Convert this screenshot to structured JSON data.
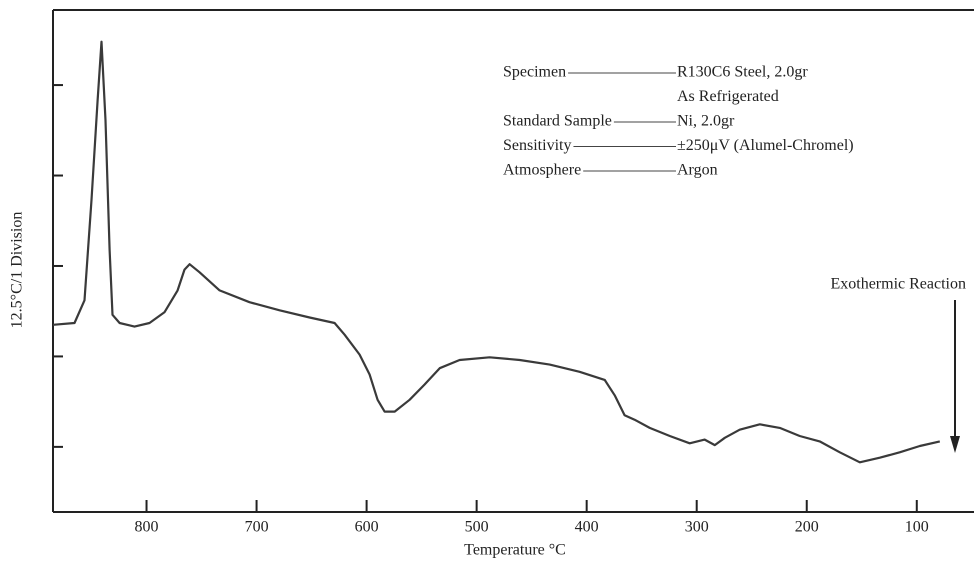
{
  "chart_data": {
    "type": "line",
    "x_label": "Temperature °C",
    "y_label": "12.5°C/1 Division",
    "xlim": [
      885,
      48
    ],
    "ylim": [
      -0.72,
      4.83
    ],
    "xticks": [
      800,
      700,
      600,
      500,
      400,
      300,
      200,
      100
    ],
    "yticks": [
      0,
      1,
      2,
      3,
      4
    ],
    "x": [
      885,
      865.5,
      856.4,
      850,
      844.5,
      840.9,
      837.3,
      833.6,
      830.9,
      824.5,
      810.9,
      797.3,
      783.6,
      771.8,
      765.5,
      760.9,
      751.8,
      733.6,
      706.4,
      679.1,
      651.8,
      629.1,
      620,
      606.4,
      597.3,
      590,
      583.6,
      574.5,
      560.9,
      547.3,
      533.6,
      515.5,
      488.2,
      460.9,
      433.6,
      406.4,
      383.6,
      374.5,
      365.5,
      356.4,
      342.7,
      324.5,
      306.4,
      292.7,
      283.6,
      274.5,
      260.9,
      242.7,
      224.5,
      206.4,
      188.2,
      170,
      151.8,
      133.6,
      115.5,
      97.3,
      79.1
    ],
    "series": [
      {
        "color": "#3a3a3a",
        "values": [
          1.35,
          1.37,
          1.62,
          2.73,
          3.83,
          4.48,
          3.61,
          2.18,
          1.46,
          1.37,
          1.33,
          1.37,
          1.49,
          1.73,
          1.96,
          2.02,
          1.93,
          1.73,
          1.6,
          1.51,
          1.43,
          1.37,
          1.24,
          1.02,
          0.8,
          0.52,
          0.39,
          0.39,
          0.52,
          0.69,
          0.87,
          0.96,
          0.99,
          0.96,
          0.91,
          0.83,
          0.74,
          0.57,
          0.35,
          0.3,
          0.21,
          0.12,
          0.04,
          0.08,
          0.02,
          0.1,
          0.19,
          0.25,
          0.21,
          0.12,
          0.06,
          -0.06,
          -0.17,
          -0.12,
          -0.06,
          0.01,
          0.06
        ]
      }
    ],
    "annotation": "Exothermic Reaction",
    "legend_block": [
      {
        "label": "Specimen",
        "value": "R130C6 Steel, 2.0gr"
      },
      {
        "value": "As Refrigerated"
      },
      {
        "label": "Standard Sample",
        "value": "Ni, 2.0gr"
      },
      {
        "label": "Sensitivity",
        "value": "±250μV (Alumel-Chromel)"
      },
      {
        "label": "Atmosphere",
        "value": "Argon"
      }
    ]
  }
}
